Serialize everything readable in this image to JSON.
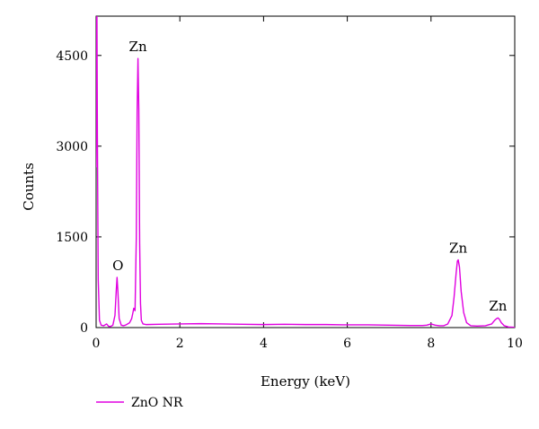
{
  "chart_data": {
    "type": "line",
    "xlabel": "Energy (keV)",
    "ylabel": "Counts",
    "xlim": [
      0,
      10
    ],
    "ylim": [
      0,
      5150
    ],
    "x_ticks": [
      0,
      2,
      4,
      6,
      8,
      10
    ],
    "y_ticks": [
      0,
      1500,
      3000,
      4500
    ],
    "grid": false,
    "legend_position": "bottom-left",
    "series": [
      {
        "name": "ZnO NR",
        "color": "#e000e0",
        "x": [
          0.0,
          0.01,
          0.02,
          0.03,
          0.05,
          0.08,
          0.12,
          0.18,
          0.25,
          0.3,
          0.35,
          0.4,
          0.45,
          0.48,
          0.5,
          0.52,
          0.55,
          0.6,
          0.65,
          0.7,
          0.75,
          0.8,
          0.85,
          0.88,
          0.9,
          0.93,
          0.96,
          0.98,
          1.0,
          1.02,
          1.04,
          1.06,
          1.08,
          1.12,
          1.2,
          1.5,
          2.0,
          2.5,
          3.0,
          3.5,
          4.0,
          4.5,
          5.0,
          5.5,
          6.0,
          6.5,
          7.0,
          7.5,
          7.8,
          7.9,
          8.0,
          8.1,
          8.2,
          8.3,
          8.4,
          8.5,
          8.55,
          8.6,
          8.63,
          8.65,
          8.68,
          8.72,
          8.78,
          8.85,
          8.95,
          9.1,
          9.3,
          9.45,
          9.52,
          9.57,
          9.6,
          9.63,
          9.68,
          9.75,
          9.85,
          10.0
        ],
        "values": [
          2650,
          5100,
          5150,
          3200,
          800,
          120,
          40,
          30,
          60,
          20,
          20,
          40,
          200,
          600,
          830,
          600,
          150,
          40,
          30,
          40,
          60,
          80,
          150,
          250,
          320,
          280,
          1500,
          3600,
          4450,
          3600,
          1400,
          400,
          120,
          60,
          50,
          55,
          60,
          65,
          60,
          55,
          50,
          55,
          50,
          50,
          45,
          45,
          40,
          35,
          35,
          40,
          60,
          40,
          30,
          30,
          60,
          200,
          500,
          900,
          1100,
          1120,
          1000,
          600,
          250,
          80,
          30,
          25,
          30,
          60,
          120,
          150,
          160,
          140,
          80,
          30,
          10,
          5
        ]
      }
    ],
    "annotations": [
      {
        "text": "Zn",
        "x": 1.0,
        "y": 4450
      },
      {
        "text": "O",
        "x": 0.52,
        "y": 830
      },
      {
        "text": "Zn",
        "x": 8.65,
        "y": 1120
      },
      {
        "text": "Zn",
        "x": 9.6,
        "y": 160
      }
    ]
  }
}
